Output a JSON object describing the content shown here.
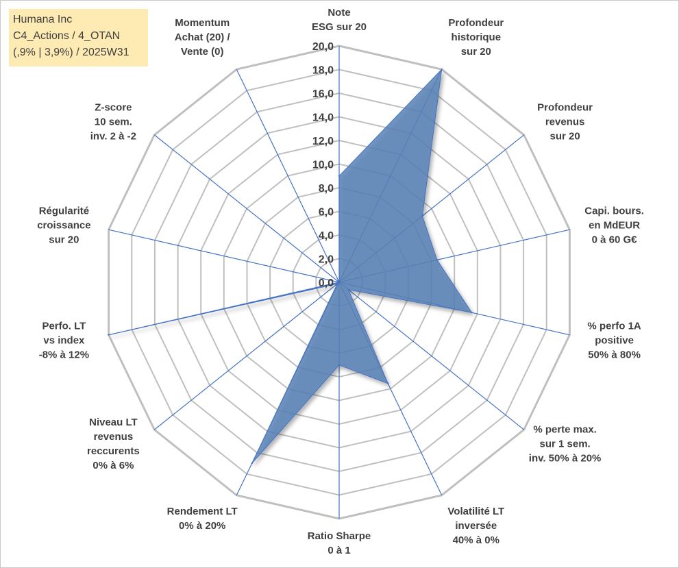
{
  "info_box": {
    "line1": "Humana Inc",
    "line2": "C4_Actions / 4_OTAN",
    "line3": "(,9% | 3,9%) / 2025W31"
  },
  "chart_data": {
    "type": "radar",
    "rmin": 0,
    "rmax": 20,
    "tick_step": 2,
    "tick_labels": [
      "0,0",
      "2,0",
      "4,0",
      "6,0",
      "8,0",
      "10,0",
      "12,0",
      "14,0",
      "16,0",
      "18,0",
      "20,0"
    ],
    "axes": [
      [
        "Note",
        "ESG sur 20"
      ],
      [
        "Profondeur",
        "historique",
        "sur 20"
      ],
      [
        "Profondeur",
        "revenus",
        "sur 20"
      ],
      [
        "Capi. bours.",
        "en MdEUR",
        "0 à 60 G€"
      ],
      [
        "% perfo 1A",
        "positive",
        "50% à 80%"
      ],
      [
        "% perte max.",
        "sur 1 sem.",
        "inv. 50% à 20%"
      ],
      [
        "Volatilité LT",
        "inversée",
        "40% à 0%"
      ],
      [
        "Ratio Sharpe",
        "0 à 1"
      ],
      [
        "Rendement LT",
        "0% à 20%"
      ],
      [
        "Niveau LT",
        "revenus",
        "reccurents",
        "0% à 6%"
      ],
      [
        "Perfo. LT",
        "vs index",
        "-8% à 12%"
      ],
      [
        "Régularité",
        "croissance",
        "sur 20"
      ],
      [
        "Z-score",
        "10 sem.",
        "inv. 2 à -2"
      ],
      [
        "Momentum",
        "Achat (20) /",
        "Vente (0)"
      ]
    ],
    "values": [
      9.0,
      20.0,
      9.0,
      8.5,
      11.5,
      1.0,
      9.5,
      7.0,
      17.0,
      0.2,
      20.0,
      0.0,
      0.0,
      0.0
    ],
    "colors": {
      "grid": "#bfbfbf",
      "spoke": "#4472c4",
      "fill": "#5b82b6",
      "text": "#404040"
    }
  }
}
